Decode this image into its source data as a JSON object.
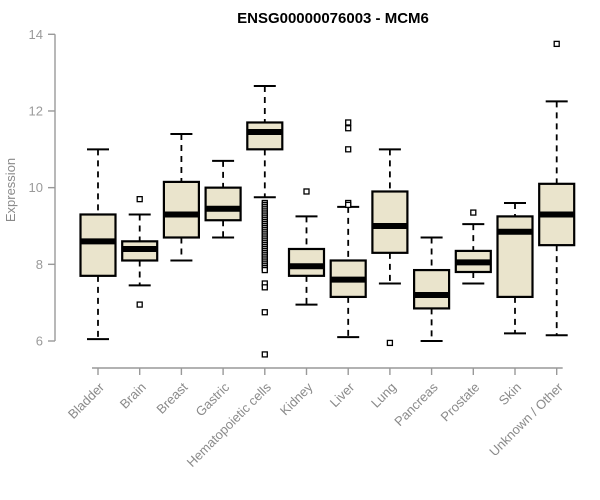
{
  "chart_data": {
    "type": "boxplot",
    "title": "ENSG00000076003 - MCM6",
    "ylabel": "Expression",
    "xlabel": "",
    "ylim": [
      6,
      14
    ],
    "yticks": [
      6,
      8,
      10,
      12,
      14
    ],
    "grid": false,
    "legend": "none",
    "box_fill": "#EAE4CC",
    "box_border": "#000000",
    "axis_color": "#999999",
    "label_color": "#8a8a8a",
    "categories": [
      "Bladder",
      "Brain",
      "Breast",
      "Gastric",
      "Hematopoietic cells",
      "Kidney",
      "Liver",
      "Lung",
      "Pancreas",
      "Prostate",
      "Skin",
      "Unknown / Other"
    ],
    "boxes": [
      {
        "category": "Bladder",
        "whisker_low": 6.05,
        "q1": 7.7,
        "median": 8.6,
        "q3": 9.3,
        "whisker_high": 11.0,
        "outliers": []
      },
      {
        "category": "Brain",
        "whisker_low": 7.45,
        "q1": 8.1,
        "median": 8.4,
        "q3": 8.6,
        "whisker_high": 9.3,
        "outliers": [
          9.7,
          6.95
        ]
      },
      {
        "category": "Breast",
        "whisker_low": 8.1,
        "q1": 8.7,
        "median": 9.3,
        "q3": 10.15,
        "whisker_high": 11.4,
        "outliers": []
      },
      {
        "category": "Gastric",
        "whisker_low": 8.7,
        "q1": 9.15,
        "median": 9.45,
        "q3": 10.0,
        "whisker_high": 10.7,
        "outliers": []
      },
      {
        "category": "Hematopoietic cells",
        "whisker_low": 9.75,
        "q1": 11.0,
        "median": 11.45,
        "q3": 11.7,
        "whisker_high": 12.65,
        "outliers": [
          9.6,
          9.55,
          9.5,
          9.45,
          9.4,
          9.35,
          9.3,
          9.25,
          9.2,
          9.15,
          9.1,
          9.05,
          9.0,
          8.95,
          8.9,
          8.85,
          8.8,
          8.75,
          8.7,
          8.65,
          8.6,
          8.55,
          8.5,
          8.45,
          8.4,
          8.35,
          8.3,
          8.25,
          8.2,
          8.15,
          8.1,
          8.05,
          8.0,
          7.95,
          7.9,
          7.85,
          7.5,
          7.4,
          6.75,
          5.65
        ]
      },
      {
        "category": "Kidney",
        "whisker_low": 6.95,
        "q1": 7.7,
        "median": 7.95,
        "q3": 8.4,
        "whisker_high": 9.25,
        "outliers": [
          9.9
        ]
      },
      {
        "category": "Liver",
        "whisker_low": 6.1,
        "q1": 7.15,
        "median": 7.6,
        "q3": 8.1,
        "whisker_high": 9.5,
        "outliers": [
          11.7,
          11.55,
          11.0,
          9.6,
          9.55
        ]
      },
      {
        "category": "Lung",
        "whisker_low": 7.5,
        "q1": 8.3,
        "median": 9.0,
        "q3": 9.9,
        "whisker_high": 11.0,
        "outliers": [
          5.95
        ]
      },
      {
        "category": "Pancreas",
        "whisker_low": 6.0,
        "q1": 6.85,
        "median": 7.2,
        "q3": 7.85,
        "whisker_high": 8.7,
        "outliers": []
      },
      {
        "category": "Prostate",
        "whisker_low": 7.5,
        "q1": 7.8,
        "median": 8.05,
        "q3": 8.35,
        "whisker_high": 9.05,
        "outliers": [
          9.35
        ]
      },
      {
        "category": "Skin",
        "whisker_low": 6.2,
        "q1": 7.15,
        "median": 8.85,
        "q3": 9.25,
        "whisker_high": 9.6,
        "outliers": []
      },
      {
        "category": "Unknown / Other",
        "whisker_low": 6.15,
        "q1": 8.5,
        "median": 9.3,
        "q3": 10.1,
        "whisker_high": 12.25,
        "outliers": [
          13.75
        ]
      }
    ]
  }
}
